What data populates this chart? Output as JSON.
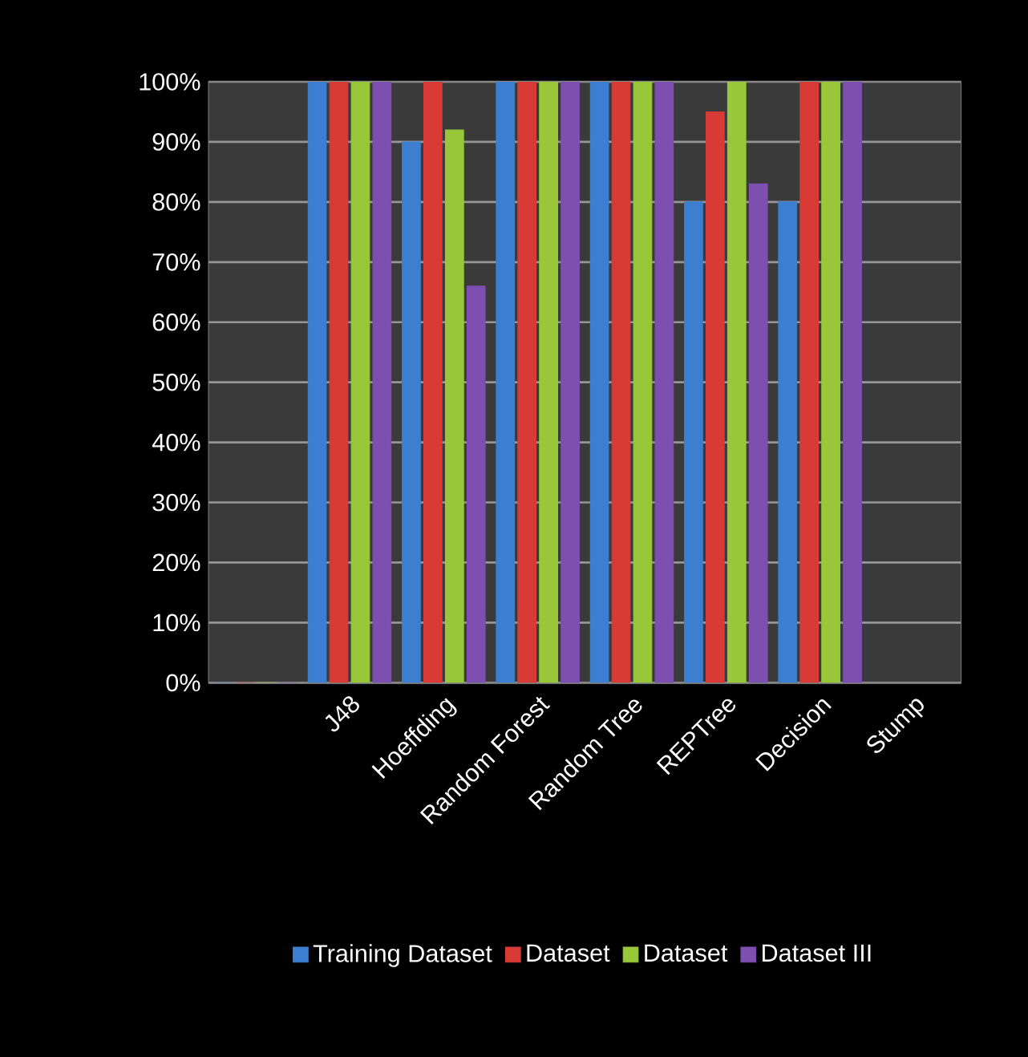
{
  "chart_data": {
    "type": "bar",
    "categories": [
      null,
      "J48",
      "Hoeffding",
      "Random Forest",
      "Random Tree",
      "REPTree",
      "Decision",
      "Stump"
    ],
    "series": [
      {
        "name": "Training Dataset",
        "color": "#3c7fd0",
        "values": [
          0,
          100,
          90,
          100,
          100,
          80,
          80,
          null
        ]
      },
      {
        "name": "Dataset",
        "color": "#d83a35",
        "values": [
          0,
          100,
          100,
          100,
          100,
          95,
          100,
          null
        ]
      },
      {
        "name": "Dataset",
        "color": "#98c83a",
        "values": [
          0,
          100,
          92,
          100,
          100,
          100,
          100,
          null
        ]
      },
      {
        "name": "Dataset III",
        "color": "#7d4fb0",
        "values": [
          0,
          100,
          66,
          100,
          100,
          83,
          100,
          null
        ]
      }
    ],
    "ylim": [
      0,
      100
    ],
    "yticks": [
      {
        "value": 0,
        "label": "0%"
      },
      {
        "value": 10,
        "label": "10%"
      },
      {
        "value": 20,
        "label": "20%"
      },
      {
        "value": 30,
        "label": "30%"
      },
      {
        "value": 40,
        "label": "40%"
      },
      {
        "value": 50,
        "label": "50%"
      },
      {
        "value": 60,
        "label": "60%"
      },
      {
        "value": 70,
        "label": "70%"
      },
      {
        "value": 80,
        "label": "80%"
      },
      {
        "value": 90,
        "label": "90%"
      },
      {
        "value": 100,
        "label": "100%"
      }
    ],
    "grid": "y",
    "legend": "bottom"
  }
}
